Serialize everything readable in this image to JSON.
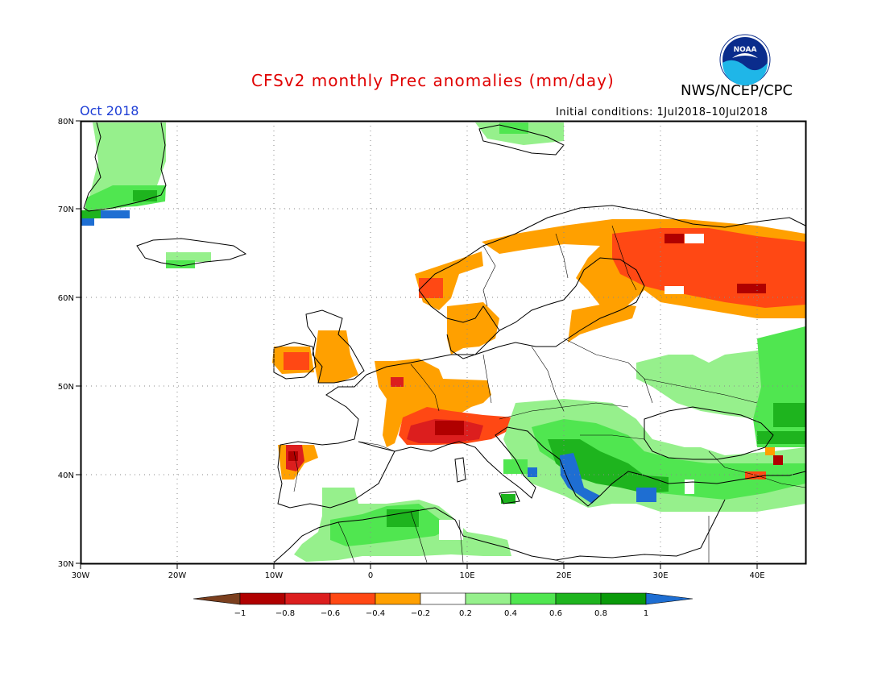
{
  "header": {
    "title": "CFSv2 monthly Prec anomalies (mm/day)",
    "agency": "NWS/NCEP/CPC",
    "logo_text": "NOAA",
    "valid_month": "Oct 2018",
    "initial_conditions": "Initial conditions: 1Jul2018–10Jul2018"
  },
  "map": {
    "lon_range": [
      -30,
      45
    ],
    "lat_range": [
      30,
      80
    ],
    "lat_labels": [
      "30N",
      "40N",
      "50N",
      "60N",
      "70N",
      "80N"
    ],
    "lon_labels": [
      "30W",
      "20W",
      "10W",
      "0",
      "10E",
      "20E",
      "30E",
      "40E"
    ],
    "gridlines": "dotted",
    "coastlines": "black",
    "country_borders": true
  },
  "legend": {
    "tick_labels": [
      "−1",
      "−0.8",
      "−0.6",
      "−0.4",
      "−0.2",
      "0.2",
      "0.4",
      "0.6",
      "0.8",
      "1"
    ],
    "bins": [
      {
        "range": "< -1",
        "color": "#7b3f1e"
      },
      {
        "range": "-1 to -0.8",
        "color": "#b00000"
      },
      {
        "range": "-0.8 to -0.6",
        "color": "#dc1e1e"
      },
      {
        "range": "-0.6 to -0.4",
        "color": "#ff4814"
      },
      {
        "range": "-0.4 to -0.2",
        "color": "#ffa000"
      },
      {
        "range": "-0.2 to 0.2",
        "color": "#ffffff"
      },
      {
        "range": "0.2 to 0.4",
        "color": "#96f08c"
      },
      {
        "range": "0.4 to 0.6",
        "color": "#50e650"
      },
      {
        "range": "0.6 to 0.8",
        "color": "#1eb41e"
      },
      {
        "range": "0.8 to 1",
        "color": "#0a9a0a"
      },
      {
        "range": "> 1",
        "color": "#1e6ed2"
      }
    ]
  }
}
